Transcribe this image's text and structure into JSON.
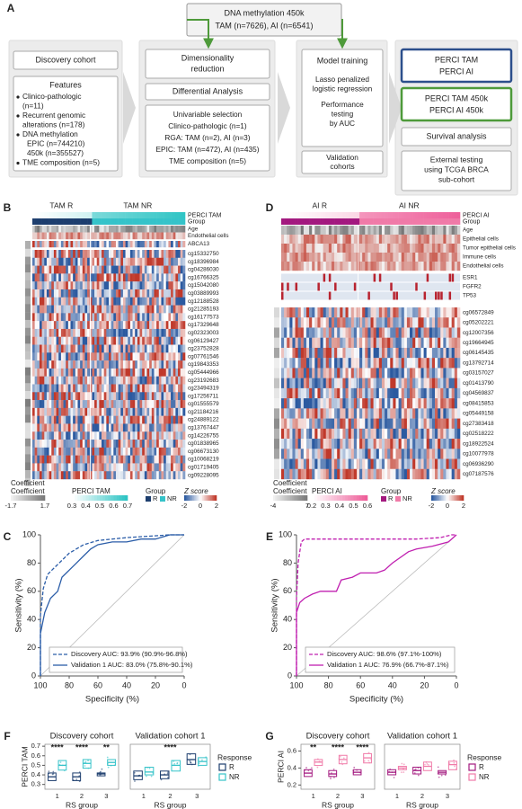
{
  "diagram": {
    "label": "A",
    "top_box": [
      "DNA methylation 450k",
      "TAM (n=7626), AI (n=6541)"
    ],
    "discovery": "Discovery cohort",
    "features_title": "Features",
    "features": [
      [
        "Clinico-pathologic",
        "(n=11)"
      ],
      [
        "Recurrent genomic",
        "alterations (n=178)"
      ],
      [
        "DNA methylation",
        "EPIC (n=744210)",
        "450k (n=355527)"
      ],
      [
        "TME composition (n=5)"
      ]
    ],
    "dim_reduction": [
      "Dimensionality",
      "reduction"
    ],
    "diff_analysis": "Differential Analysis",
    "univariable": [
      "Univariable selection",
      "Clinico-pathologic (n=1)",
      "RGA: TAM (n=2), AI (n=3)",
      "EPIC: TAM (n=472), AI (n=435)",
      "TME composition (n=5)"
    ],
    "model_training": "Model training",
    "lasso": [
      "Lasso penalized",
      "logistic regression"
    ],
    "performance": [
      "Performance",
      "testing",
      "by AUC"
    ],
    "validation": [
      "Validation",
      "cohorts"
    ],
    "perci": [
      "PERCI TAM",
      "PERCI AI"
    ],
    "perci450k": [
      "PERCI TAM 450k",
      "PERCI AI 450k"
    ],
    "survival": "Survival analysis",
    "external": [
      "External testing",
      "using TCGA BRCA",
      "sub-cohort"
    ]
  },
  "heatmaps": [
    {
      "label": "B",
      "groups": [
        "TAM R",
        "TAM NR"
      ],
      "top_tracks": [
        "PERCI TAM",
        "Group"
      ],
      "annotation_rows": [
        "Age",
        "Endothelial cells"
      ],
      "gene_rows": [
        "ABCA13"
      ],
      "cpg_rows": [
        "cg15332750",
        "cg18396984",
        "cg04286030",
        "cg16766325",
        "cg15042080",
        "cg03889993",
        "cg12188528",
        "cg21285193",
        "cg16177573",
        "cg17329648",
        "cg02323003",
        "cg06129427",
        "cg23752828",
        "cg07761546",
        "cg19843353",
        "cg05444966",
        "cg23192683",
        "cg23494319",
        "cg17256711",
        "cg01555579",
        "cg21184216",
        "cg24889122",
        "cg13767447",
        "cg14226755",
        "cg01838965",
        "cg06673130",
        "cg10068219",
        "cg01719405",
        "cg09228095"
      ],
      "coefficient_label": "Coefficient",
      "legends": {
        "coefficient": {
          "title": "Coefficient",
          "ticks": [
            -1.7,
            1.7
          ]
        },
        "score": {
          "title": "PERCI TAM",
          "ticks": [
            0.3,
            0.4,
            0.5,
            0.6,
            0.7
          ],
          "colors": [
            "#ffffff",
            "#2ec4c4"
          ]
        },
        "group": {
          "title": "Group",
          "items": [
            "R",
            "NR"
          ],
          "colors": [
            "#1d3e6e",
            "#35c3c9"
          ]
        },
        "zscore": {
          "title": "Z score",
          "ticks": [
            -2,
            0,
            2
          ]
        }
      }
    },
    {
      "label": "D",
      "groups": [
        "AI R",
        "AI NR"
      ],
      "top_tracks": [
        "PERCI AI",
        "Group"
      ],
      "annotation_rows": [
        "Age",
        "Epithelial cells",
        "Tumor epithelial cells",
        "Immune cells",
        "Endothelial cells"
      ],
      "gene_rows": [
        "ESR1",
        "FGFR2",
        "TP53"
      ],
      "cpg_rows": [
        "cg06572849",
        "cg05202221",
        "cg12007356",
        "cg19664945",
        "cg06145435",
        "cg13792714",
        "cg03157027",
        "cg01413790",
        "cg04569837",
        "cg08415853",
        "cg05449158",
        "cg27383418",
        "cg02518222",
        "cg18922524",
        "cg10077978",
        "cg06936290",
        "cg07187576"
      ],
      "coefficient_label": "Coefficient",
      "legends": {
        "coefficient": {
          "title": "Coefficient",
          "ticks": [
            -4,
            7
          ]
        },
        "score": {
          "title": "PERCI AI",
          "ticks": [
            0.2,
            0.3,
            0.4,
            0.5,
            0.6
          ],
          "colors": [
            "#ffffff",
            "#ee5f9a"
          ]
        },
        "group": {
          "title": "Group",
          "items": [
            "R",
            "NR"
          ],
          "colors": [
            "#a3197f",
            "#f07aa8"
          ]
        },
        "zscore": {
          "title": "Z score",
          "ticks": [
            -2,
            0,
            2
          ]
        }
      }
    }
  ],
  "chart_data": [
    {
      "type": "line",
      "label": "C",
      "xlabel": "Specificity (%)",
      "ylabel": "Sensitivity (%)",
      "xlim": [
        100,
        0
      ],
      "ylim": [
        0,
        100
      ],
      "xticks": [
        100,
        80,
        60,
        40,
        20,
        0
      ],
      "yticks": [
        0,
        20,
        40,
        60,
        80,
        100
      ],
      "series": [
        {
          "name": "Discovery AUC: 93.9% (90.9%-96.8%)",
          "color": "#2b5da8",
          "dashed": true,
          "x": [
            100,
            100,
            98,
            95,
            90,
            85,
            80,
            75,
            70,
            60,
            50,
            40,
            25,
            10,
            0
          ],
          "values": [
            0,
            43,
            62,
            72,
            77,
            82,
            87,
            90,
            93,
            96,
            97,
            98,
            99,
            100,
            100
          ]
        },
        {
          "name": "Validation 1 AUC: 83.0% (75.8%-90.1%)",
          "color": "#2b5da8",
          "dashed": false,
          "x": [
            100,
            100,
            97,
            93,
            88,
            85,
            80,
            75,
            70,
            65,
            60,
            50,
            40,
            30,
            20,
            10,
            0
          ],
          "values": [
            0,
            30,
            45,
            55,
            60,
            70,
            75,
            80,
            85,
            90,
            93,
            95,
            95,
            97,
            97,
            100,
            100
          ]
        }
      ]
    },
    {
      "type": "line",
      "label": "E",
      "xlabel": "Specificity (%)",
      "ylabel": "Sensitivity (%)",
      "xlim": [
        100,
        0
      ],
      "ylim": [
        0,
        100
      ],
      "xticks": [
        100,
        80,
        60,
        40,
        20,
        0
      ],
      "yticks": [
        0,
        20,
        40,
        60,
        80,
        100
      ],
      "series": [
        {
          "name": "Discovery AUC: 98.6% (97.1%-100%)",
          "color": "#c020b0",
          "dashed": true,
          "x": [
            100,
            100,
            99,
            97,
            95,
            90,
            50,
            25,
            10,
            3,
            0
          ],
          "values": [
            0,
            55,
            80,
            95,
            97,
            97,
            97,
            97,
            98,
            100,
            100
          ]
        },
        {
          "name": "Validation 1 AUC: 76.9% (66.7%-87.1%)",
          "color": "#c020b0",
          "dashed": false,
          "x": [
            100,
            100,
            98,
            95,
            90,
            85,
            75,
            72,
            65,
            60,
            50,
            45,
            40,
            30,
            25,
            15,
            5,
            0
          ],
          "values": [
            0,
            45,
            52,
            55,
            58,
            60,
            60,
            68,
            70,
            73,
            73,
            75,
            80,
            88,
            90,
            92,
            95,
            100
          ]
        }
      ]
    },
    {
      "type": "box",
      "label": "F",
      "ylabel": "PERCI TAM",
      "xlabel": "RS group",
      "legend_title": "Response",
      "ylim": [
        0.25,
        0.72
      ],
      "yticks": [
        0.3,
        0.4,
        0.5,
        0.6,
        0.7
      ],
      "series": [
        {
          "name": "R",
          "color": "#1d3e6e"
        },
        {
          "name": "NR",
          "color": "#35c3c9"
        }
      ],
      "panels": [
        {
          "title": "Discovery cohort",
          "categories": [
            "1",
            "2",
            "3"
          ],
          "annotations": [
            "****",
            "****",
            "**"
          ],
          "q1": [
            [
              0.34,
              0.34,
              0.39
            ],
            [
              0.45,
              0.47,
              0.5
            ]
          ],
          "median": [
            [
              0.38,
              0.38,
              0.41
            ],
            [
              0.5,
              0.52,
              0.53
            ]
          ],
          "q3": [
            [
              0.42,
              0.42,
              0.42
            ],
            [
              0.55,
              0.56,
              0.56
            ]
          ]
        },
        {
          "title": "Validation cohort 1",
          "categories": [
            "1",
            "2",
            "3"
          ],
          "annotations": [
            null,
            "****",
            null
          ],
          "q1": [
            [
              0.35,
              0.36,
              0.51
            ],
            [
              0.4,
              0.44,
              0.5
            ]
          ],
          "median": [
            [
              0.39,
              0.4,
              0.56
            ],
            [
              0.43,
              0.5,
              0.54
            ]
          ],
          "q3": [
            [
              0.44,
              0.44,
              0.62
            ],
            [
              0.48,
              0.55,
              0.58
            ]
          ]
        }
      ]
    },
    {
      "type": "box",
      "label": "G",
      "ylabel": "PERCI AI",
      "xlabel": "RS group",
      "legend_title": "Response",
      "ylim": [
        0.15,
        0.68
      ],
      "yticks": [
        0.2,
        0.4,
        0.6
      ],
      "series": [
        {
          "name": "R",
          "color": "#a3197f"
        },
        {
          "name": "NR",
          "color": "#f07aa8"
        }
      ],
      "panels": [
        {
          "title": "Discovery cohort",
          "categories": [
            "1",
            "2",
            "3"
          ],
          "annotations": [
            "**",
            "****",
            "****"
          ],
          "q1": [
            [
              0.3,
              0.3,
              0.32
            ],
            [
              0.43,
              0.45,
              0.46
            ]
          ],
          "median": [
            [
              0.34,
              0.33,
              0.35
            ],
            [
              0.47,
              0.5,
              0.52
            ]
          ],
          "q3": [
            [
              0.38,
              0.37,
              0.38
            ],
            [
              0.5,
              0.55,
              0.57
            ]
          ]
        },
        {
          "title": "Validation cohort 1",
          "categories": [
            "1",
            "2",
            "3"
          ],
          "annotations": [
            null,
            null,
            null
          ],
          "q1": [
            [
              0.32,
              0.33,
              0.33
            ],
            [
              0.38,
              0.37,
              0.38
            ]
          ],
          "median": [
            [
              0.35,
              0.37,
              0.35
            ],
            [
              0.4,
              0.42,
              0.44
            ]
          ],
          "q3": [
            [
              0.38,
              0.41,
              0.37
            ],
            [
              0.42,
              0.47,
              0.48
            ]
          ]
        }
      ]
    }
  ]
}
